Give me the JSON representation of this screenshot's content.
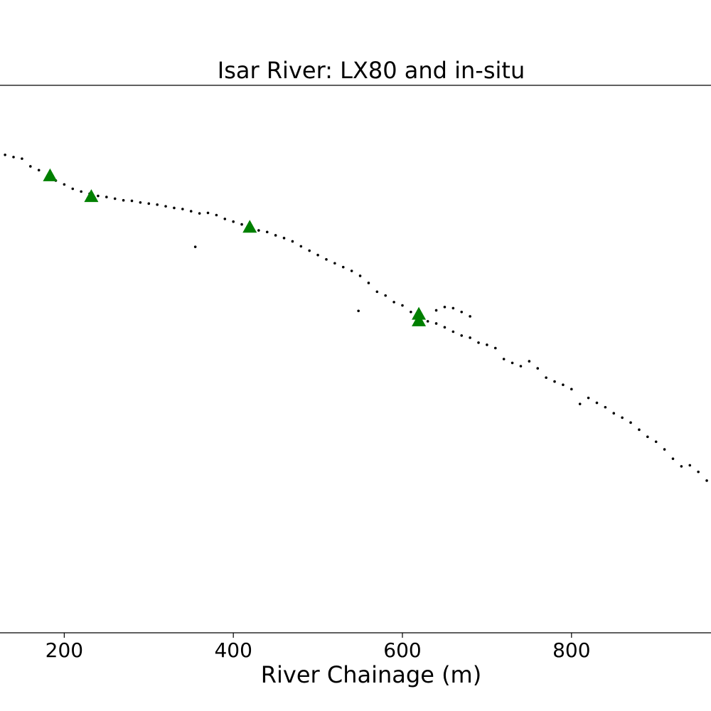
{
  "chart_data": {
    "type": "scatter",
    "title": "Isar River: LX80 and in-situ",
    "x_label": "River Chainage (m)",
    "xlim": [
      124,
      965
    ],
    "xticks": [
      200,
      400,
      600,
      800
    ],
    "ylim": [
      0,
      100
    ],
    "grid": false,
    "series": [
      {
        "color": "#000000",
        "marker": "dot",
        "x": [
          130,
          140,
          150,
          160,
          170,
          180,
          190,
          200,
          210,
          220,
          230,
          240,
          250,
          260,
          270,
          280,
          290,
          300,
          310,
          320,
          330,
          340,
          350,
          355,
          360,
          370,
          380,
          390,
          400,
          410,
          420,
          430,
          440,
          450,
          460,
          470,
          480,
          490,
          500,
          510,
          520,
          530,
          540,
          548,
          550,
          560,
          570,
          580,
          590,
          600,
          610,
          620,
          630,
          640,
          650,
          660,
          670,
          680,
          640,
          650,
          660,
          670,
          680,
          690,
          700,
          710,
          720,
          730,
          740,
          750,
          760,
          770,
          780,
          790,
          800,
          810,
          820,
          830,
          840,
          850,
          860,
          870,
          880,
          890,
          900,
          910,
          920,
          930,
          940,
          950,
          960
        ],
        "values": [
          87.3,
          86.9,
          86.6,
          85.2,
          84.5,
          83.4,
          82.6,
          81.9,
          81.1,
          80.6,
          80.2,
          79.8,
          79.6,
          79.3,
          79.0,
          78.9,
          78.6,
          78.4,
          78.2,
          77.9,
          77.6,
          77.4,
          77.0,
          70.5,
          76.6,
          76.7,
          76.3,
          75.6,
          75.1,
          74.6,
          74.1,
          73.5,
          73.2,
          72.6,
          72.1,
          71.5,
          70.6,
          69.8,
          69.0,
          68.2,
          67.5,
          66.8,
          66.1,
          58.8,
          65.2,
          63.9,
          62.3,
          61.6,
          60.4,
          59.8,
          58.6,
          57.5,
          56.9,
          58.9,
          59.5,
          59.3,
          58.6,
          57.8,
          56.5,
          55.8,
          55.0,
          54.3,
          53.9,
          53.0,
          52.6,
          52.0,
          50.0,
          49.3,
          48.7,
          49.6,
          48.3,
          46.6,
          45.9,
          45.3,
          44.5,
          41.8,
          42.9,
          42.0,
          41.2,
          40.1,
          39.3,
          38.4,
          37.1,
          35.8,
          34.9,
          33.5,
          31.8,
          30.4,
          30.6,
          29.4,
          27.8
        ]
      },
      {
        "color": "#008000",
        "marker": "triangle",
        "x": [
          183.2,
          232,
          419.4,
          619.4,
          619.4
        ],
        "values": [
          83.4,
          79.6,
          74.0,
          58.1,
          56.9
        ]
      }
    ]
  }
}
